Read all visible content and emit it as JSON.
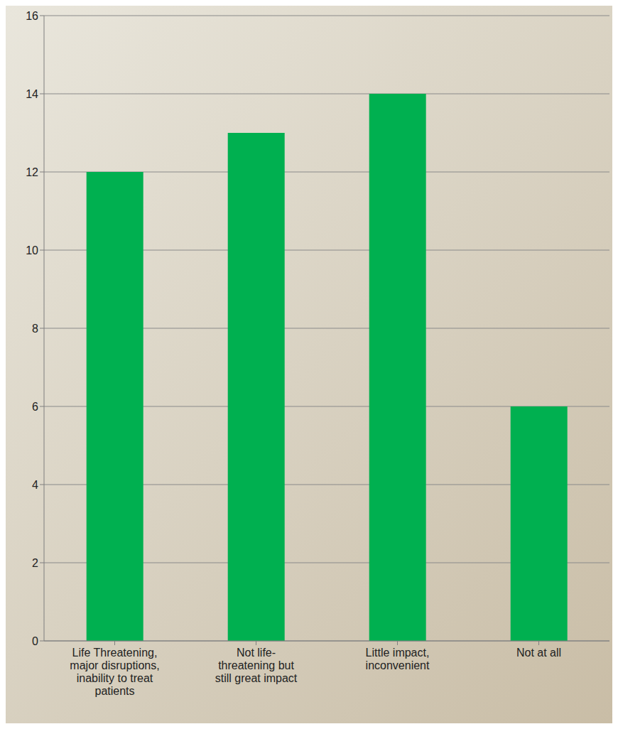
{
  "chart_data": {
    "type": "bar",
    "categories": [
      "Life Threatening, major disruptions, inability to treat patients",
      "Not life-threatening but still great impact",
      "Little impact, inconvenient",
      "Not at all"
    ],
    "values": [
      12,
      13,
      14,
      6
    ],
    "color": "#00b050",
    "ylim": [
      0,
      16
    ],
    "yticks": [
      0,
      2,
      4,
      6,
      8,
      10,
      12,
      14,
      16
    ],
    "grid": true
  }
}
